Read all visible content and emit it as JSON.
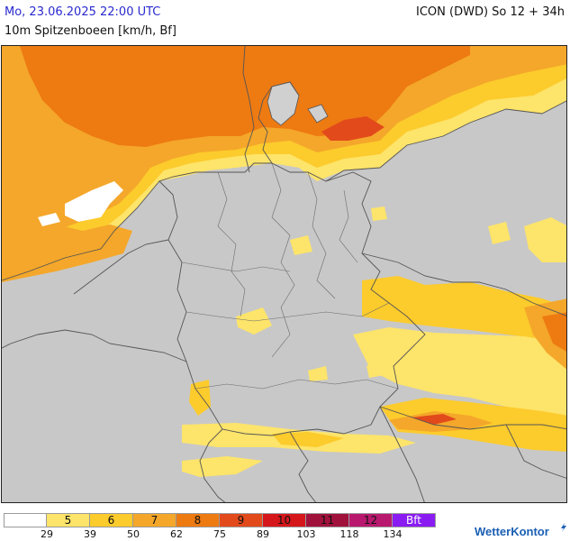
{
  "header": {
    "datetime": "Mo, 23.06.2025 22:00 UTC",
    "model": "ICON (DWD) So 12 + 34h",
    "parameter": "10m Spitzenboeen [km/h, Bf]"
  },
  "colors": {
    "background_land": "#c8c8c8",
    "bf5": "#fde46a",
    "bf6": "#fccb2c",
    "bf7": "#f4a72a",
    "bf8": "#ee7a12",
    "bf9": "#e24a1b",
    "bf10": "#d5161b",
    "bf11": "#a0123c",
    "bf12": "#b8196e",
    "bf13": "#8a1cf2",
    "title_blue": "#2a2ad0",
    "logo_blue": "#1a5fb4"
  },
  "legend": {
    "swatches": [
      {
        "label": "",
        "color": "#ffffff",
        "text_color": "#111111"
      },
      {
        "label": "5",
        "color": "#fde46a",
        "text_color": "#111111"
      },
      {
        "label": "6",
        "color": "#fccb2c",
        "text_color": "#111111"
      },
      {
        "label": "7",
        "color": "#f4a72a",
        "text_color": "#111111"
      },
      {
        "label": "8",
        "color": "#ee7a12",
        "text_color": "#111111"
      },
      {
        "label": "9",
        "color": "#e24a1b",
        "text_color": "#111111"
      },
      {
        "label": "10",
        "color": "#d5161b",
        "text_color": "#111111"
      },
      {
        "label": "11",
        "color": "#a0123c",
        "text_color": "#111111"
      },
      {
        "label": "12",
        "color": "#b8196e",
        "text_color": "#111111"
      },
      {
        "label": "Bft",
        "color": "#8a1cf2",
        "text_color": "#ffffff"
      }
    ],
    "ticks": [
      "29",
      "39",
      "50",
      "62",
      "75",
      "89",
      "103",
      "118",
      "134"
    ]
  },
  "logo": {
    "text": "WetterKontor",
    "icon": "wind-gust-icon"
  }
}
